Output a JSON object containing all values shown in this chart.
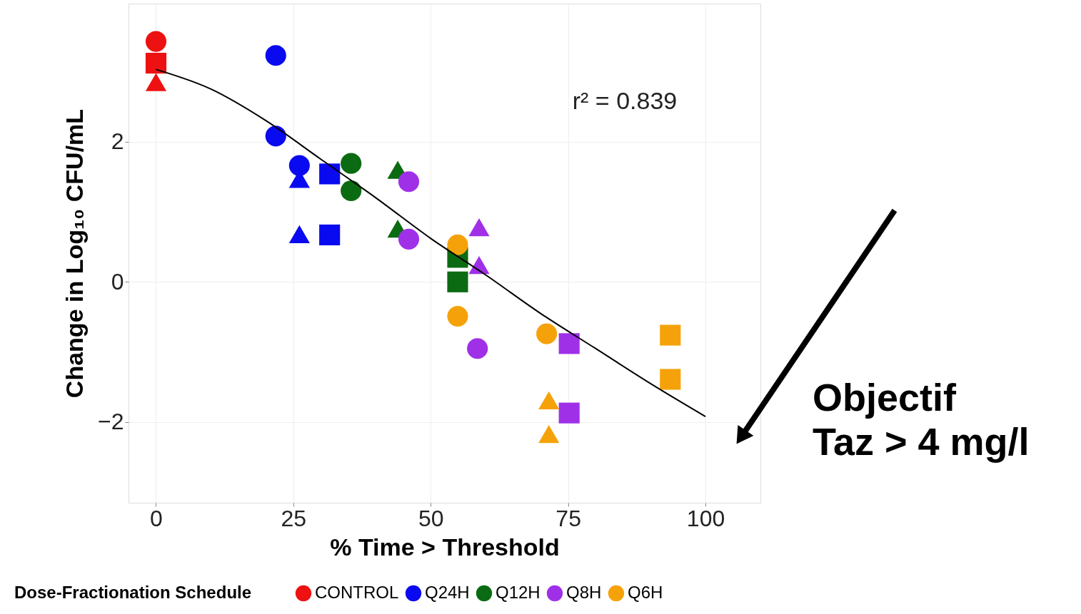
{
  "chart_data": {
    "type": "scatter",
    "xlabel": "% Time > Threshold",
    "ylabel": "Change in Log₁₀ CFU/mL",
    "legend_title": "Dose-Fractionation Schedule",
    "legend": "bottom",
    "grid": true,
    "xlim": [
      -5,
      110
    ],
    "ylim": [
      -3.15,
      3.97
    ],
    "xticks": [
      0,
      25,
      50,
      75,
      100
    ],
    "yticks": [
      -2,
      0,
      2
    ],
    "series": [
      {
        "name": "CONTROL",
        "color": "#ee1111",
        "marker": "circle",
        "x": [
          0
        ],
        "values": [
          3.43
        ]
      },
      {
        "color": "#ee1111",
        "marker": "square",
        "x": [
          0
        ],
        "values": [
          3.12
        ]
      },
      {
        "color": "#ee1111",
        "marker": "triangle",
        "x": [
          0
        ],
        "values": [
          2.85
        ]
      },
      {
        "name": "Q24H",
        "color": "#0a0af0",
        "marker": "circle",
        "x": [
          21.8,
          21.8,
          26.1
        ],
        "values": [
          3.23,
          2.08,
          1.66
        ]
      },
      {
        "color": "#0a0af0",
        "marker": "triangle",
        "x": [
          26.1,
          26.1
        ],
        "values": [
          1.47,
          0.68
        ]
      },
      {
        "color": "#0a0af0",
        "marker": "square",
        "x": [
          31.6,
          31.6
        ],
        "values": [
          1.54,
          0.67
        ]
      },
      {
        "name": "Q12H",
        "color": "#0b6b12",
        "marker": "circle",
        "x": [
          35.5,
          35.5
        ],
        "values": [
          1.69,
          1.3
        ]
      },
      {
        "color": "#0b6b12",
        "marker": "triangle",
        "x": [
          44.0,
          44.0
        ],
        "values": [
          1.6,
          0.76
        ]
      },
      {
        "color": "#0b6b12",
        "marker": "square",
        "x": [
          54.9,
          54.9
        ],
        "values": [
          0.35,
          0.0
        ]
      },
      {
        "name": "Q8H",
        "color": "#a030e8",
        "marker": "circle",
        "x": [
          46.0,
          46.0,
          58.5
        ],
        "values": [
          1.43,
          0.61,
          -0.95
        ]
      },
      {
        "color": "#a030e8",
        "marker": "triangle",
        "x": [
          58.8,
          58.8
        ],
        "values": [
          0.78,
          0.24
        ]
      },
      {
        "color": "#a030e8",
        "marker": "square",
        "x": [
          75.2,
          75.2
        ],
        "values": [
          -0.88,
          -1.87
        ]
      },
      {
        "name": "Q6H",
        "color": "#f5a20a",
        "marker": "circle",
        "x": [
          54.9,
          54.9,
          71.1
        ],
        "values": [
          0.53,
          -0.49,
          -0.74
        ]
      },
      {
        "color": "#f5a20a",
        "marker": "triangle",
        "x": [
          71.5,
          71.5
        ],
        "values": [
          -1.69,
          -2.17
        ]
      },
      {
        "color": "#f5a20a",
        "marker": "square",
        "x": [
          93.6,
          93.6
        ],
        "values": [
          -0.76,
          -1.39
        ]
      },
      {
        "type": "line",
        "color": "#000000",
        "marker": "none",
        "x": [
          0,
          10,
          20,
          30,
          40,
          50,
          60,
          70,
          80,
          90,
          100
        ],
        "values": [
          3.03,
          2.75,
          2.3,
          1.75,
          1.2,
          0.62,
          0.1,
          -0.45,
          -0.95,
          -1.45,
          -1.92
        ]
      }
    ],
    "annotations": [
      "r² = 0.839",
      "Objectif\nTaz > 4 mg/l"
    ]
  }
}
